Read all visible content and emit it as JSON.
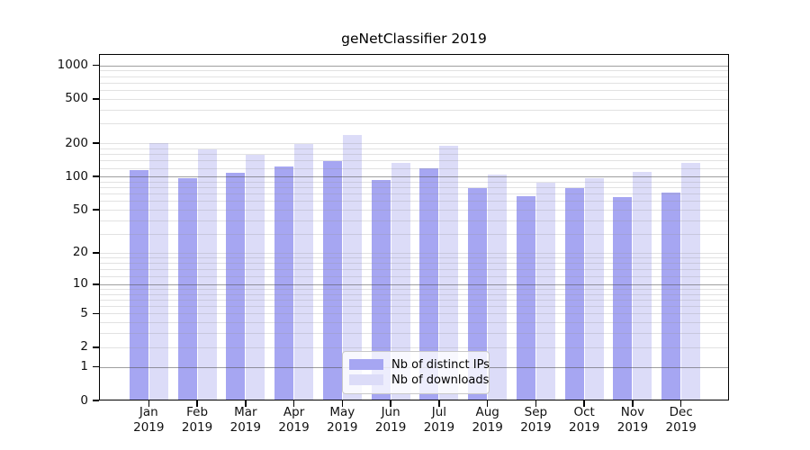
{
  "title": "geNetClassifier 2019",
  "legend": {
    "items": [
      {
        "label": "Nb of distinct IPs",
        "color": "#a6a6f2"
      },
      {
        "label": "Nb of downloads",
        "color": "#dcdcf8"
      }
    ]
  },
  "y_axis": {
    "tick_labels": [
      "0",
      "1",
      "2",
      "5",
      "10",
      "20",
      "50",
      "100",
      "200",
      "500",
      "1000"
    ]
  },
  "x_axis": {
    "months": [
      "Jan",
      "Feb",
      "Mar",
      "Apr",
      "May",
      "Jun",
      "Jul",
      "Aug",
      "Sep",
      "Oct",
      "Nov",
      "Dec"
    ],
    "year": "2019"
  },
  "chart_data": {
    "type": "bar",
    "title": "geNetClassifier 2019",
    "categories": [
      "Jan 2019",
      "Feb 2019",
      "Mar 2019",
      "Apr 2019",
      "May 2019",
      "Jun 2019",
      "Jul 2019",
      "Aug 2019",
      "Sep 2019",
      "Oct 2019",
      "Nov 2019",
      "Dec 2019"
    ],
    "series": [
      {
        "name": "Nb of distinct IPs",
        "color": "#a6a6f2",
        "values": [
          114,
          96,
          108,
          123,
          139,
          94,
          120,
          78,
          67,
          78,
          65,
          72
        ]
      },
      {
        "name": "Nb of downloads",
        "color": "#dcdcf8",
        "values": [
          199,
          177,
          156,
          198,
          237,
          134,
          191,
          104,
          88,
          97,
          111,
          133
        ]
      }
    ],
    "y_scale": "log1p",
    "y_ticks": [
      0,
      1,
      2,
      5,
      10,
      20,
      50,
      100,
      200,
      500,
      1000
    ],
    "ylim": [
      0,
      1270
    ],
    "grid": {
      "major": [
        1,
        10,
        100,
        1000
      ],
      "minor": [
        2,
        3,
        4,
        5,
        6,
        7,
        8,
        9,
        12,
        14,
        16,
        18,
        20,
        30,
        40,
        50,
        60,
        70,
        80,
        90,
        120,
        140,
        160,
        180,
        200,
        300,
        400,
        500,
        600,
        700,
        800,
        900
      ]
    },
    "legend_position": "lower center",
    "xlabel": "",
    "ylabel": ""
  }
}
